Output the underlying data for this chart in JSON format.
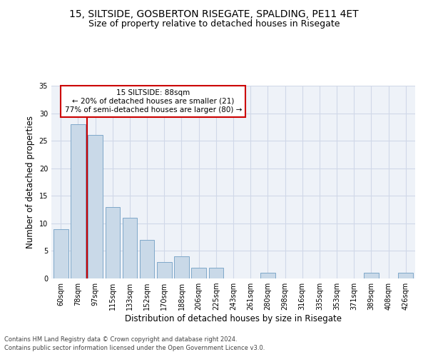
{
  "title1": "15, SILTSIDE, GOSBERTON RISEGATE, SPALDING, PE11 4ET",
  "title2": "Size of property relative to detached houses in Risegate",
  "xlabel": "Distribution of detached houses by size in Risegate",
  "ylabel": "Number of detached properties",
  "bar_labels": [
    "60sqm",
    "78sqm",
    "97sqm",
    "115sqm",
    "133sqm",
    "152sqm",
    "170sqm",
    "188sqm",
    "206sqm",
    "225sqm",
    "243sqm",
    "261sqm",
    "280sqm",
    "298sqm",
    "316sqm",
    "335sqm",
    "353sqm",
    "371sqm",
    "389sqm",
    "408sqm",
    "426sqm"
  ],
  "bar_values": [
    9,
    28,
    26,
    13,
    11,
    7,
    3,
    4,
    2,
    2,
    0,
    0,
    1,
    0,
    0,
    0,
    0,
    0,
    1,
    0,
    1
  ],
  "bar_color": "#c9d9e8",
  "bar_edgecolor": "#7fa8c9",
  "vline_x": 1.5,
  "vline_color": "#cc0000",
  "annotation_text": "15 SILTSIDE: 88sqm\n← 20% of detached houses are smaller (21)\n77% of semi-detached houses are larger (80) →",
  "annotation_box_edgecolor": "#cc0000",
  "annotation_box_facecolor": "#ffffff",
  "ylim": [
    0,
    35
  ],
  "yticks": [
    0,
    5,
    10,
    15,
    20,
    25,
    30,
    35
  ],
  "grid_color": "#d0d8e8",
  "background_color": "#eef2f8",
  "footer_line1": "Contains HM Land Registry data © Crown copyright and database right 2024.",
  "footer_line2": "Contains public sector information licensed under the Open Government Licence v3.0.",
  "title1_fontsize": 10,
  "title2_fontsize": 9,
  "xlabel_fontsize": 8.5,
  "ylabel_fontsize": 8.5,
  "tick_fontsize": 7,
  "annotation_fontsize": 7.5,
  "footer_fontsize": 6
}
